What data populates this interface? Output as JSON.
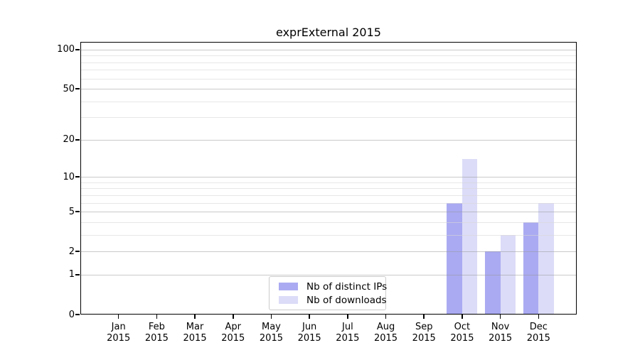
{
  "chart_data": {
    "type": "bar",
    "title": "exprExternal 2015",
    "categories": [
      "Jan 2015",
      "Feb 2015",
      "Mar 2015",
      "Apr 2015",
      "May 2015",
      "Jun 2015",
      "Jul 2015",
      "Aug 2015",
      "Sep 2015",
      "Oct 2015",
      "Nov 2015",
      "Dec 2015"
    ],
    "x_tick_months": [
      "Jan",
      "Feb",
      "Mar",
      "Apr",
      "May",
      "Jun",
      "Jul",
      "Aug",
      "Sep",
      "Oct",
      "Nov",
      "Dec"
    ],
    "x_tick_year": "2015",
    "series": [
      {
        "name": "Nb of distinct IPs",
        "color": "#aaaaf2",
        "values": [
          0,
          0,
          0,
          0,
          0,
          0,
          0,
          0,
          0,
          6,
          2,
          4
        ]
      },
      {
        "name": "Nb of downloads",
        "color": "#dcdcf8",
        "values": [
          0,
          0,
          0,
          0,
          0,
          0,
          0,
          0,
          0,
          14,
          3,
          6
        ]
      }
    ],
    "y_scale": "log1p",
    "y_ticks_major": [
      0,
      1,
      2,
      5,
      10,
      20,
      50,
      100
    ],
    "y_ticks_minor": [
      3,
      4,
      6,
      7,
      8,
      9,
      30,
      40,
      60,
      70,
      80,
      90
    ],
    "ylim": [
      0,
      114.7
    ],
    "grid": "horizontal",
    "legend_position": "lower center"
  }
}
